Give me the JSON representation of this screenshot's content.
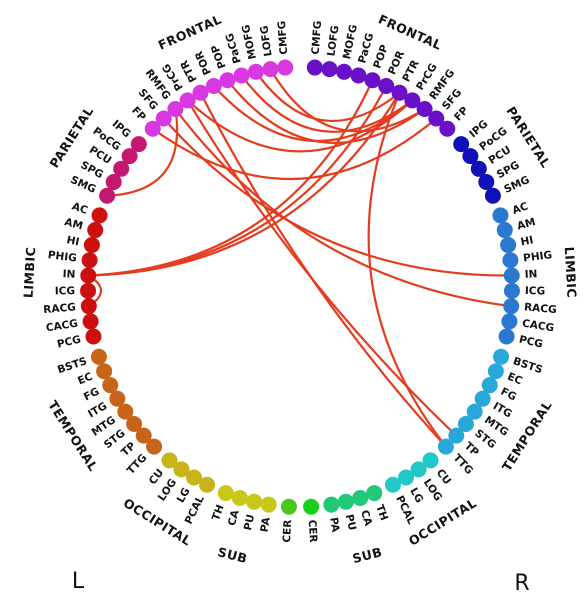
{
  "hemispheres": [
    {
      "label": "L",
      "groups": [
        {
          "label": "FRONTAL",
          "color": "#d838e0",
          "nodes": [
            "CMFG",
            "LOFG",
            "MOFG",
            "PaCG",
            "POP",
            "POR",
            "PTR",
            "PrCG",
            "RMFG",
            "SFG",
            "FP"
          ]
        },
        {
          "label": "PARIETAL",
          "color": "#c41870",
          "nodes": [
            "IPG",
            "PoCG",
            "PCU",
            "SPG",
            "SMG"
          ]
        },
        {
          "label": "LIMBIC",
          "color": "#cc1010",
          "nodes": [
            "AC",
            "AM",
            "HI",
            "PHIG",
            "IN",
            "ICG",
            "RACG",
            "CACG",
            "PCG"
          ]
        },
        {
          "label": "TEMPORAL",
          "color": "#c8641a",
          "nodes": [
            "BSTS",
            "EC",
            "FG",
            "ITG",
            "MTG",
            "STG",
            "TP",
            "TTG"
          ]
        },
        {
          "label": "OCCIPITAL",
          "color": "#c8b418",
          "nodes": [
            "CU",
            "LOG",
            "LG",
            "PCAL"
          ]
        },
        {
          "label": "SUB",
          "color": "#c8c818",
          "nodes": [
            "TH",
            "CA",
            "PU",
            "PA"
          ]
        },
        {
          "color": "#48c818",
          "nodes": [
            "CER"
          ]
        }
      ]
    },
    {
      "label": "R",
      "groups": [
        {
          "label": "FRONTAL",
          "color": "#6a10c8",
          "nodes": [
            "CMFG",
            "LOFG",
            "MOFG",
            "PaCG",
            "POP",
            "POR",
            "PTR",
            "PrCG",
            "RMFG",
            "SFG",
            "FP"
          ]
        },
        {
          "label": "PARIETAL",
          "color": "#1010b8",
          "nodes": [
            "IPG",
            "PoCG",
            "PCU",
            "SPG",
            "SMG"
          ]
        },
        {
          "label": "LIMBIC",
          "color": "#2a78d0",
          "nodes": [
            "AC",
            "AM",
            "HI",
            "PHIG",
            "IN",
            "ICG",
            "RACG",
            "CACG",
            "PCG"
          ]
        },
        {
          "label": "TEMPORAL",
          "color": "#28a8d8",
          "nodes": [
            "BSTS",
            "EC",
            "FG",
            "ITG",
            "MTG",
            "STG",
            "TP",
            "TTG"
          ]
        },
        {
          "label": "OCCIPITAL",
          "color": "#20c8c8",
          "nodes": [
            "CU",
            "LOG",
            "LG",
            "PCAL"
          ]
        },
        {
          "label": "SUB",
          "color": "#20c878",
          "nodes": [
            "TH",
            "CA",
            "PU",
            "PA"
          ]
        },
        {
          "color": "#18d018",
          "nodes": [
            "CER"
          ]
        }
      ]
    }
  ]
}
